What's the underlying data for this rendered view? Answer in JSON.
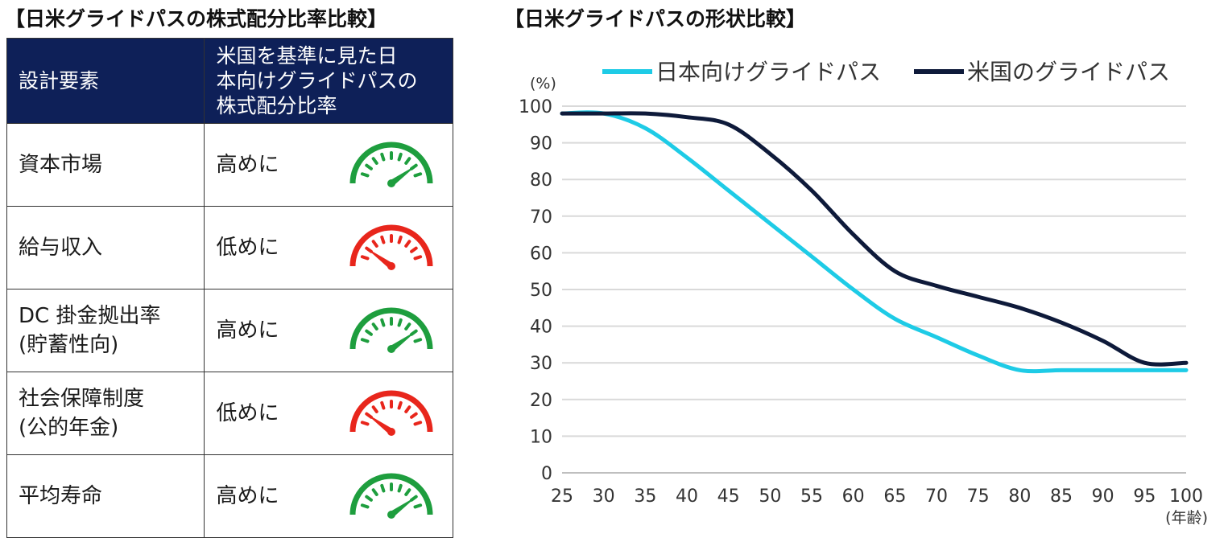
{
  "left_title": "【日米グライドパスの株式配分比率比較】",
  "right_title": "【日米グライドパスの形状比較】",
  "table": {
    "headers": [
      "設計要素",
      "米国を基準に見た日本向けグライドパスの株式配分比率"
    ],
    "header_lines": [
      "米国を基準に見た日",
      "本向けグライドパスの",
      "株式配分比率"
    ],
    "rows": [
      {
        "factor_lines": [
          "資本市場"
        ],
        "level": "高めに",
        "gauge_icon": "speedometer-high-icon",
        "gauge_color": "#1e9e3e",
        "gauge_level": 0.8
      },
      {
        "factor_lines": [
          "給与収入"
        ],
        "level": "低めに",
        "gauge_icon": "speedometer-low-icon",
        "gauge_color": "#e8261c",
        "gauge_level": 0.2
      },
      {
        "factor_lines": [
          "DC 掛金拠出率",
          "(貯蓄性向)"
        ],
        "level": "高めに",
        "gauge_icon": "speedometer-high-icon",
        "gauge_color": "#1e9e3e",
        "gauge_level": 0.8
      },
      {
        "factor_lines": [
          "社会保障制度",
          "(公的年金)"
        ],
        "level": "低めに",
        "gauge_icon": "speedometer-low-icon",
        "gauge_color": "#e8261c",
        "gauge_level": 0.2
      },
      {
        "factor_lines": [
          "平均寿命"
        ],
        "level": "高めに",
        "gauge_icon": "speedometer-high-icon",
        "gauge_color": "#1e9e3e",
        "gauge_level": 0.8
      }
    ]
  },
  "chart_data": {
    "type": "line",
    "x": [
      25,
      30,
      35,
      40,
      45,
      50,
      55,
      60,
      65,
      70,
      75,
      80,
      85,
      90,
      95,
      100
    ],
    "x_ticks": [
      "25",
      "30",
      "35",
      "40",
      "45",
      "50",
      "55",
      "60",
      "65",
      "70",
      "75",
      "80",
      "85",
      "90",
      "95",
      "100"
    ],
    "y_ticks": [
      "0",
      "10",
      "20",
      "30",
      "40",
      "50",
      "60",
      "70",
      "80",
      "90",
      "100"
    ],
    "ylim": [
      0,
      100
    ],
    "xlim": [
      25,
      100
    ],
    "y_unit": "(%)",
    "x_unit": "(年齢)",
    "grid": "horizontal",
    "legend_position": "top",
    "series": [
      {
        "name": "日本向けグライドパス",
        "color": "#1ecbe6",
        "values": [
          98,
          98,
          94,
          86,
          77,
          68,
          59,
          50,
          42,
          37,
          32,
          28,
          28,
          28,
          28,
          28
        ]
      },
      {
        "name": "米国のグライドパス",
        "color": "#0e1a3a",
        "values": [
          98,
          98,
          98,
          97,
          95,
          87,
          77,
          65,
          55,
          51,
          48,
          45,
          41,
          36,
          30,
          30
        ]
      }
    ]
  }
}
